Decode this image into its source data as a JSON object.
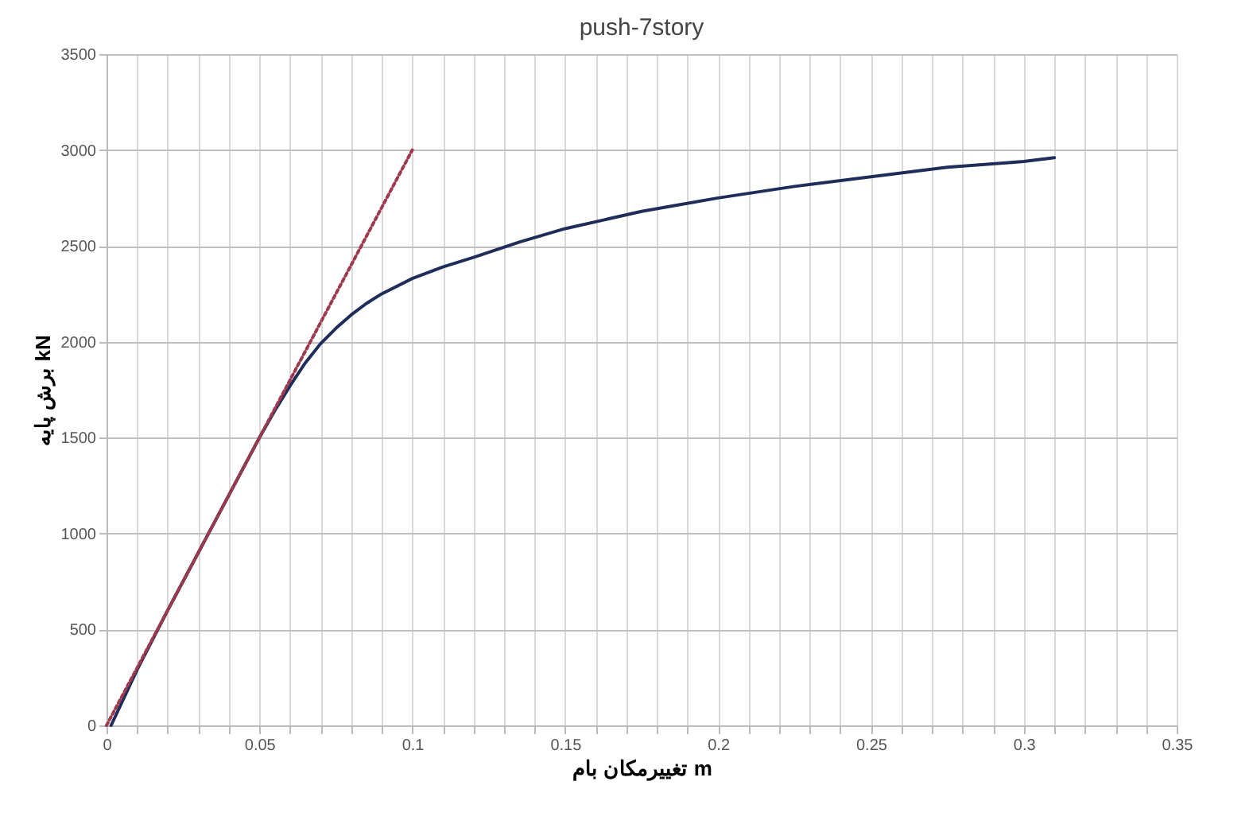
{
  "chart_data": {
    "type": "line",
    "title": "push-7story",
    "xlabel": "تغییرمکان بام m",
    "ylabel": "برش پایه kN",
    "series": [
      {
        "color": "#1f2d5a",
        "line_style": "solid",
        "x": [
          0.0015,
          0.01,
          0.02,
          0.03,
          0.04,
          0.05,
          0.055,
          0.06,
          0.065,
          0.07,
          0.075,
          0.08,
          0.085,
          0.09,
          0.1,
          0.11,
          0.12,
          0.135,
          0.15,
          0.175,
          0.2,
          0.225,
          0.25,
          0.275,
          0.3,
          0.31
        ],
        "values": [
          0,
          290,
          600,
          900,
          1200,
          1500,
          1640,
          1770,
          1890,
          1990,
          2070,
          2140,
          2200,
          2250,
          2330,
          2390,
          2440,
          2520,
          2590,
          2680,
          2750,
          2810,
          2860,
          2910,
          2940,
          2960
        ]
      },
      {
        "color": "#9e3a4e",
        "line_style": "dotted",
        "x": [
          0,
          0.1
        ],
        "values": [
          0,
          3000
        ]
      }
    ],
    "xlim": [
      0,
      0.35
    ],
    "ylim": [
      0,
      3500
    ],
    "xticks": [
      0,
      {
        "value": 0.01,
        "label": null
      },
      {
        "value": 0.02,
        "label": null
      },
      {
        "value": 0.03,
        "label": null
      },
      {
        "value": 0.04,
        "label": null
      },
      0.05,
      {
        "value": 0.06,
        "label": null
      },
      {
        "value": 0.07,
        "label": null
      },
      {
        "value": 0.08,
        "label": null
      },
      {
        "value": 0.09,
        "label": null
      },
      0.1,
      {
        "value": 0.11,
        "label": null
      },
      {
        "value": 0.12,
        "label": null
      },
      {
        "value": 0.13,
        "label": null
      },
      {
        "value": 0.14,
        "label": null
      },
      0.15,
      {
        "value": 0.16,
        "label": null
      },
      {
        "value": 0.17,
        "label": null
      },
      {
        "value": 0.18,
        "label": null
      },
      {
        "value": 0.19,
        "label": null
      },
      0.2,
      {
        "value": 0.21,
        "label": null
      },
      {
        "value": 0.22,
        "label": null
      },
      {
        "value": 0.23,
        "label": null
      },
      {
        "value": 0.24,
        "label": null
      },
      0.25,
      {
        "value": 0.26,
        "label": null
      },
      {
        "value": 0.27,
        "label": null
      },
      {
        "value": 0.28,
        "label": null
      },
      {
        "value": 0.29,
        "label": null
      },
      0.3,
      {
        "value": 0.31,
        "label": null
      },
      {
        "value": 0.32,
        "label": null
      },
      {
        "value": 0.33,
        "label": null
      },
      {
        "value": 0.34,
        "label": null
      },
      0.35
    ],
    "yticks": [
      0,
      500,
      1000,
      1500,
      2000,
      2500,
      3000,
      3500
    ],
    "grid": true
  }
}
